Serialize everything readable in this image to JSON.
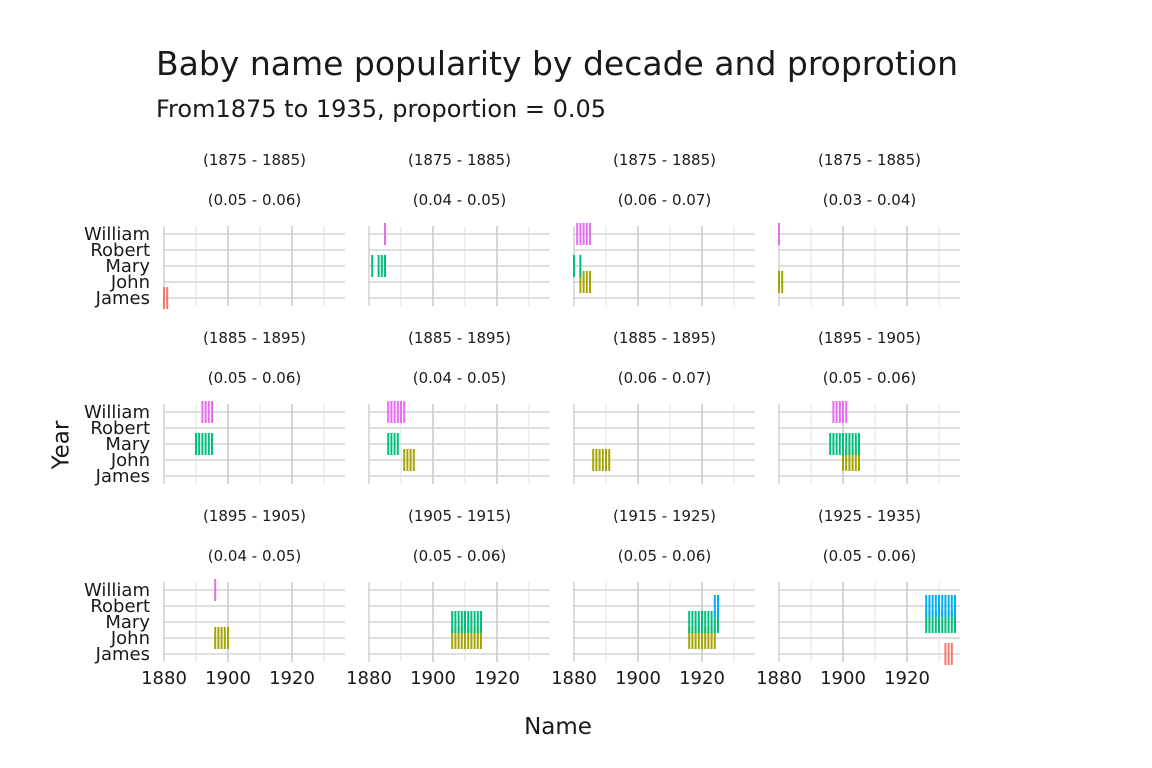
{
  "chart_data": {
    "type": "faceted_barcode",
    "title": "Baby name popularity by decade and proprotion",
    "subtitle": "From1875 to 1935, proportion = 0.05",
    "xlabel": "Name",
    "ylabel": "Year",
    "xlim": [
      1880,
      1937
    ],
    "x_ticks": [
      1880,
      1900,
      1920
    ],
    "categories": [
      "James",
      "John",
      "Mary",
      "Robert",
      "William"
    ],
    "grid": "on",
    "legend": "none",
    "colors": {
      "James": "#F8766D",
      "John": "#A3A500",
      "Mary": "#00BF7D",
      "Robert": "#00B0F6",
      "William": "#E76BF3"
    },
    "panels": [
      {
        "strip": [
          "(1875 - 1885)",
          "(0.05 - 0.06)"
        ],
        "series": {
          "James": [
            1880,
            1881
          ]
        }
      },
      {
        "strip": [
          "(1875 - 1885)",
          "(0.04 - 0.05)"
        ],
        "series": {
          "William": [
            1885
          ],
          "Mary": [
            1881,
            1883,
            1884,
            1885
          ]
        }
      },
      {
        "strip": [
          "(1875 - 1885)",
          "(0.06 - 0.07)"
        ],
        "series": {
          "William": [
            1881,
            1882,
            1883,
            1884,
            1885
          ],
          "Mary": [
            1880,
            1882
          ],
          "John": [
            1882,
            1883,
            1884,
            1885
          ]
        }
      },
      {
        "strip": [
          "(1875 - 1885)",
          "(0.03 - 0.04)"
        ],
        "series": {
          "William": [
            1880
          ],
          "John": [
            1880,
            1881
          ]
        }
      },
      {
        "strip": [
          "(1885 - 1895)",
          "(0.05 - 0.06)"
        ],
        "series": {
          "William": [
            1892,
            1893,
            1894,
            1895
          ],
          "Mary": [
            1890,
            1891,
            1892,
            1893,
            1894,
            1895
          ]
        }
      },
      {
        "strip": [
          "(1885 - 1895)",
          "(0.04 - 0.05)"
        ],
        "series": {
          "William": [
            1886,
            1887,
            1888,
            1889,
            1890,
            1891
          ],
          "Mary": [
            1886,
            1887,
            1888,
            1889
          ],
          "John": [
            1891,
            1892,
            1893,
            1894
          ]
        }
      },
      {
        "strip": [
          "(1885 - 1895)",
          "(0.06 - 0.07)"
        ],
        "series": {
          "John": [
            1886,
            1887,
            1888,
            1889,
            1890,
            1891
          ]
        }
      },
      {
        "strip": [
          "(1895 - 1905)",
          "(0.05 - 0.06)"
        ],
        "series": {
          "William": [
            1897,
            1898,
            1899,
            1900,
            1901
          ],
          "Mary": [
            1896,
            1897,
            1898,
            1899,
            1900,
            1901,
            1902,
            1903,
            1904,
            1905
          ],
          "John": [
            1900,
            1901,
            1902,
            1903,
            1904,
            1905
          ]
        }
      },
      {
        "strip": [
          "(1895 - 1905)",
          "(0.04 - 0.05)"
        ],
        "series": {
          "William": [
            1896
          ],
          "John": [
            1896,
            1897,
            1898,
            1899,
            1900
          ]
        }
      },
      {
        "strip": [
          "(1905 - 1915)",
          "(0.05 - 0.06)"
        ],
        "series": {
          "Mary": [
            1906,
            1907,
            1908,
            1909,
            1910,
            1911,
            1912,
            1913,
            1914,
            1915
          ],
          "John": [
            1906,
            1907,
            1908,
            1909,
            1910,
            1911,
            1912,
            1913,
            1914,
            1915
          ]
        }
      },
      {
        "strip": [
          "(1915 - 1925)",
          "(0.05 - 0.06)"
        ],
        "series": {
          "Robert": [
            1924,
            1925
          ],
          "Mary": [
            1916,
            1917,
            1918,
            1919,
            1920,
            1921,
            1922,
            1923,
            1924,
            1925
          ],
          "John": [
            1916,
            1917,
            1918,
            1919,
            1920,
            1921,
            1922,
            1923,
            1924
          ]
        }
      },
      {
        "strip": [
          "(1925 - 1935)",
          "(0.05 - 0.06)"
        ],
        "series": {
          "Robert": [
            1926,
            1927,
            1928,
            1929,
            1930,
            1931,
            1932,
            1933,
            1934,
            1935
          ],
          "Mary": [
            1926,
            1927,
            1928,
            1929,
            1930,
            1931,
            1932,
            1933,
            1934,
            1935
          ],
          "James": [
            1932,
            1933,
            1934
          ]
        }
      }
    ]
  }
}
